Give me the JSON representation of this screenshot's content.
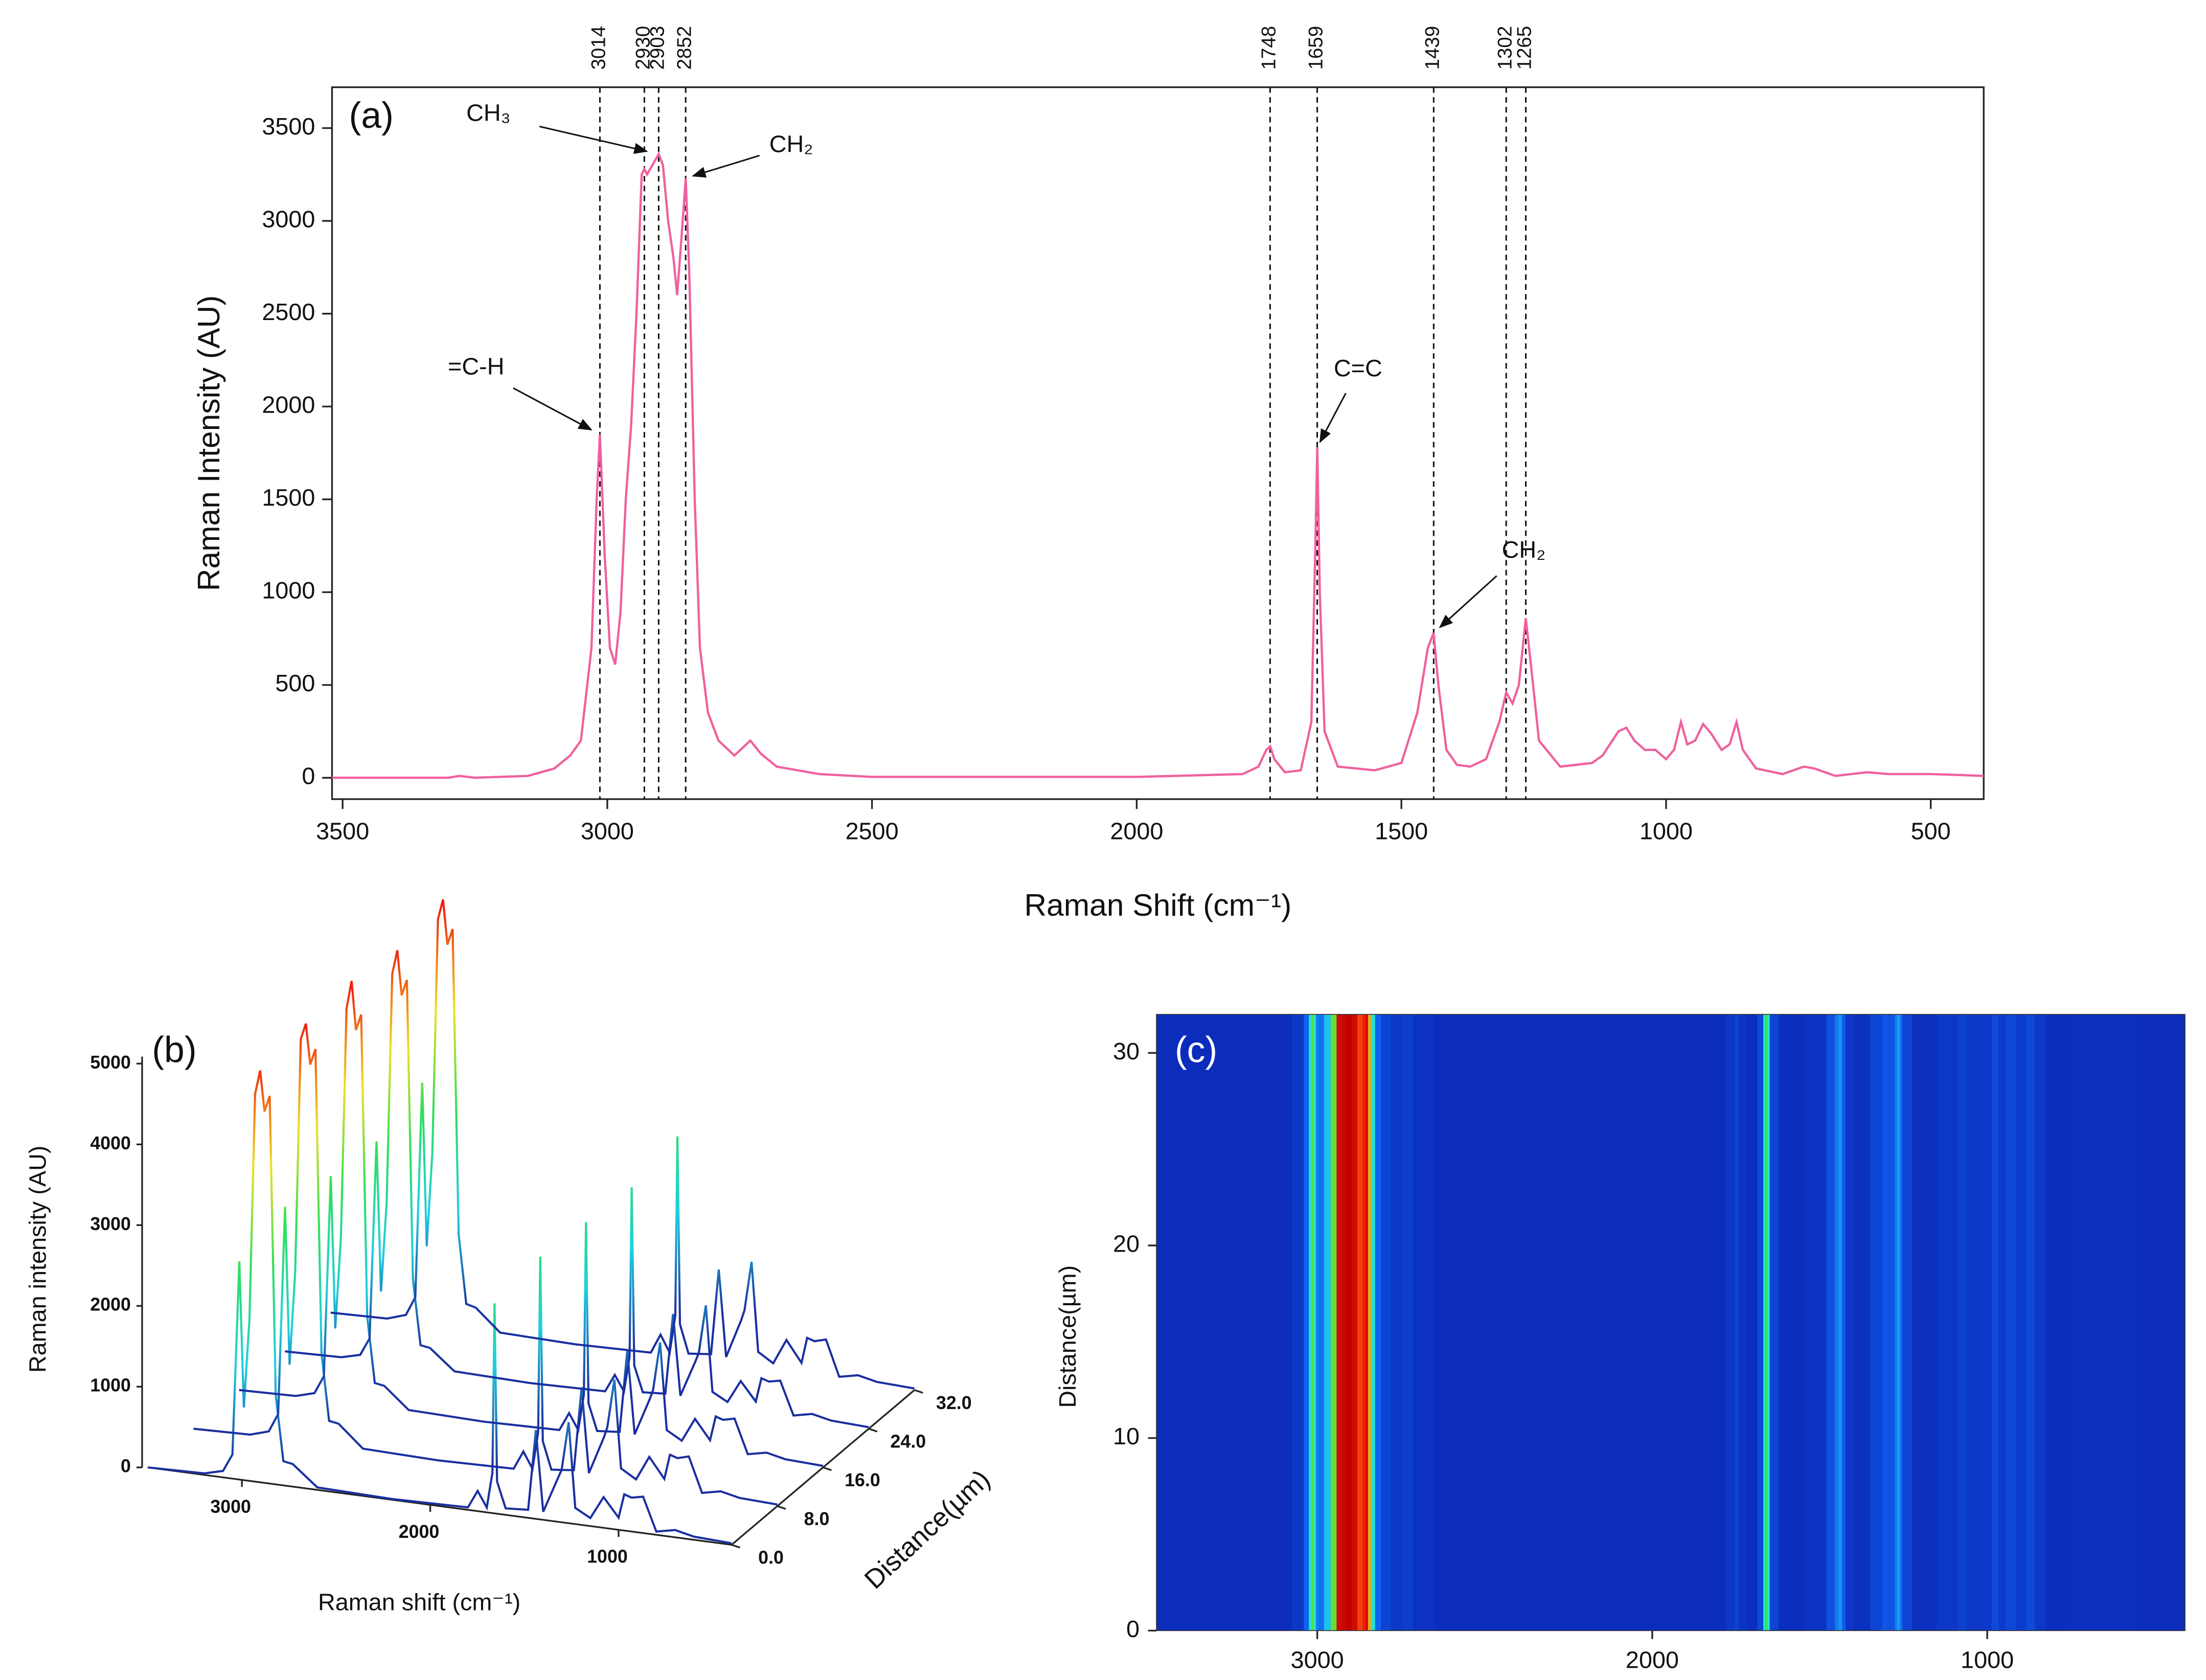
{
  "chart_data": [
    {
      "type": "line",
      "panel_label": "(a)",
      "x_label": "Raman Shift (cm⁻¹)",
      "y_label": "Raman Intensity (AU)",
      "color": "#f0609e",
      "xlim": [
        3520,
        400
      ],
      "ylim": [
        -115,
        3720
      ],
      "xticks": [
        3500,
        3000,
        2500,
        2000,
        1500,
        1000,
        500
      ],
      "yticks": [
        0,
        500,
        1000,
        1500,
        2000,
        2500,
        3000,
        3500
      ],
      "x": [
        3520,
        3300,
        3280,
        3250,
        3150,
        3100,
        3070,
        3050,
        3030,
        3020,
        3014,
        3005,
        2995,
        2985,
        2975,
        2965,
        2955,
        2945,
        2935,
        2930,
        2925,
        2915,
        2903,
        2895,
        2885,
        2875,
        2868,
        2860,
        2852,
        2845,
        2835,
        2825,
        2810,
        2790,
        2760,
        2730,
        2710,
        2680,
        2600,
        2500,
        2000,
        1800,
        1770,
        1755,
        1748,
        1740,
        1720,
        1690,
        1670,
        1662,
        1659,
        1654,
        1645,
        1620,
        1550,
        1500,
        1470,
        1450,
        1439,
        1430,
        1415,
        1395,
        1370,
        1340,
        1315,
        1302,
        1290,
        1278,
        1265,
        1255,
        1240,
        1200,
        1140,
        1120,
        1090,
        1075,
        1060,
        1040,
        1020,
        1000,
        985,
        972,
        960,
        945,
        930,
        915,
        895,
        880,
        867,
        855,
        830,
        780,
        740,
        720,
        680,
        620,
        580,
        500,
        450,
        400
      ],
      "values": [
        0,
        0,
        10,
        0,
        10,
        50,
        120,
        200,
        700,
        1500,
        1850,
        1200,
        700,
        610,
        900,
        1500,
        1900,
        2500,
        3250,
        3280,
        3250,
        3300,
        3360,
        3300,
        3000,
        2800,
        2600,
        2900,
        3230,
        2700,
        1500,
        700,
        350,
        200,
        120,
        200,
        130,
        60,
        20,
        5,
        5,
        20,
        60,
        150,
        170,
        100,
        30,
        40,
        300,
        1300,
        1780,
        1000,
        250,
        60,
        40,
        80,
        350,
        700,
        780,
        500,
        150,
        70,
        60,
        100,
        300,
        460,
        400,
        500,
        860,
        600,
        200,
        60,
        80,
        120,
        250,
        270,
        200,
        150,
        150,
        100,
        150,
        300,
        180,
        200,
        290,
        240,
        150,
        180,
        300,
        150,
        50,
        20,
        60,
        50,
        10,
        30,
        20,
        20,
        15,
        10
      ],
      "vlines": [
        3014,
        2930,
        2903,
        2852,
        1748,
        1659,
        1439,
        1302,
        1265
      ],
      "annotations": [
        {
          "text": "=C-H",
          "x": 3014,
          "y": 1850
        },
        {
          "text": "CH₃",
          "x": 2903,
          "y": 3360
        },
        {
          "text": "CH₂",
          "x": 2852,
          "y": 3230
        },
        {
          "text": "C=C",
          "x": 1659,
          "y": 1780
        },
        {
          "text": "CH₂",
          "x": 1439,
          "y": 780
        }
      ]
    },
    {
      "type": "waterfall3d",
      "panel_label": "(b)",
      "x_label": "Raman shift (cm⁻¹)",
      "y_label": "Raman intensity (AU)",
      "d_label": "Distance(µm)",
      "xlim": [
        3500,
        400
      ],
      "ylim": [
        0,
        5000
      ],
      "dlim": [
        0,
        32
      ],
      "xticks": [
        3000,
        2000,
        1000
      ],
      "yticks": [
        0,
        1000,
        2000,
        3000,
        4000,
        5000
      ],
      "dticks": [
        {
          "value": 0,
          "label": "0.0"
        },
        {
          "value": 8,
          "label": "8.0"
        },
        {
          "value": 16,
          "label": "16.0"
        },
        {
          "value": 24,
          "label": "24.0"
        },
        {
          "value": 32,
          "label": "32.0"
        }
      ],
      "colorscale": [
        "#1a2fa0",
        "#1fd0e0",
        "#2ee05a",
        "#f0e020",
        "#f02010"
      ],
      "distances": [
        0,
        8,
        16,
        24,
        32
      ],
      "x": [
        3500,
        3200,
        3100,
        3050,
        3014,
        2990,
        2960,
        2930,
        2903,
        2880,
        2852,
        2820,
        2780,
        2730,
        2600,
        2200,
        1800,
        1748,
        1700,
        1670,
        1659,
        1645,
        1600,
        1480,
        1439,
        1400,
        1320,
        1302,
        1265,
        1230,
        1150,
        1080,
        1000,
        970,
        930,
        870,
        800,
        700,
        600,
        400
      ],
      "values": [
        [
          0,
          20,
          80,
          300,
          2700,
          900,
          2000,
          4800,
          5100,
          4600,
          4800,
          1100,
          300,
          280,
          30,
          10,
          30,
          250,
          60,
          500,
          2600,
          400,
          80,
          100,
          1100,
          100,
          550,
          650,
          1250,
          200,
          100,
          380,
          150,
          450,
          420,
          450,
          40,
          90,
          40,
          20
        ],
        [
          0,
          20,
          90,
          320,
          2900,
          950,
          2100,
          5000,
          5200,
          4700,
          4900,
          1150,
          320,
          300,
          30,
          10,
          30,
          260,
          60,
          520,
          2700,
          420,
          80,
          110,
          1150,
          100,
          570,
          700,
          1300,
          210,
          100,
          400,
          150,
          460,
          430,
          470,
          40,
          90,
          40,
          20
        ],
        [
          0,
          20,
          85,
          310,
          2800,
          920,
          2050,
          4900,
          5250,
          4650,
          4850,
          1120,
          310,
          290,
          30,
          10,
          30,
          255,
          60,
          510,
          2650,
          410,
          80,
          105,
          1130,
          100,
          560,
          680,
          1280,
          205,
          100,
          390,
          150,
          455,
          425,
          460,
          40,
          90,
          40,
          20
        ],
        [
          0,
          20,
          80,
          300,
          2750,
          900,
          2000,
          4850,
          5150,
          4600,
          4800,
          1100,
          300,
          280,
          30,
          10,
          30,
          250,
          60,
          500,
          2600,
          400,
          80,
          100,
          1100,
          100,
          550,
          660,
          1260,
          200,
          100,
          380,
          150,
          450,
          420,
          450,
          40,
          90,
          40,
          20
        ],
        [
          0,
          20,
          95,
          330,
          3000,
          980,
          2150,
          5050,
          5300,
          4750,
          4950,
          1180,
          330,
          300,
          30,
          10,
          30,
          270,
          60,
          530,
          2750,
          430,
          80,
          110,
          1170,
          100,
          580,
          710,
          1320,
          215,
          100,
          410,
          150,
          470,
          440,
          480,
          40,
          90,
          40,
          20
        ]
      ]
    },
    {
      "type": "heatmap",
      "panel_label": "(c)",
      "y_label": "Distance(µm)",
      "xlim": [
        3480,
        410
      ],
      "ylim": [
        0,
        32
      ],
      "zlim": [
        0,
        3500
      ],
      "xticks": [
        3000,
        2000,
        1000
      ],
      "yticks": [
        0,
        10,
        20,
        30
      ],
      "colorscale": [
        "#0a1aa8",
        "#1060f0",
        "#20e8f0",
        "#30e040",
        "#f8e020",
        "#f01808",
        "#b00000"
      ],
      "x": [
        3480,
        3100,
        3050,
        3030,
        3020,
        3014,
        3008,
        3000,
        2990,
        2970,
        2950,
        2935,
        2920,
        2903,
        2890,
        2870,
        2860,
        2852,
        2845,
        2835,
        2820,
        2800,
        2760,
        2730,
        2700,
        2600,
        1800,
        1760,
        1748,
        1736,
        1700,
        1672,
        1665,
        1659,
        1653,
        1646,
        1600,
        1500,
        1460,
        1450,
        1439,
        1428,
        1418,
        1380,
        1320,
        1308,
        1302,
        1296,
        1280,
        1272,
        1265,
        1258,
        1250,
        1200,
        1100,
        1075,
        1050,
        1000,
        972,
        960,
        930,
        900,
        867,
        850,
        800,
        700,
        410
      ],
      "values": [
        150,
        160,
        250,
        600,
        1300,
        1850,
        1300,
        700,
        650,
        1000,
        1900,
        3200,
        3300,
        3400,
        3200,
        2800,
        2900,
        3200,
        2500,
        1300,
        600,
        350,
        250,
        300,
        200,
        150,
        160,
        250,
        350,
        220,
        170,
        400,
        1300,
        1780,
        1200,
        350,
        170,
        200,
        450,
        700,
        800,
        550,
        250,
        180,
        350,
        500,
        520,
        450,
        500,
        700,
        860,
        650,
        350,
        180,
        250,
        330,
        250,
        250,
        400,
        270,
        380,
        280,
        400,
        250,
        170,
        180,
        150
      ]
    }
  ]
}
